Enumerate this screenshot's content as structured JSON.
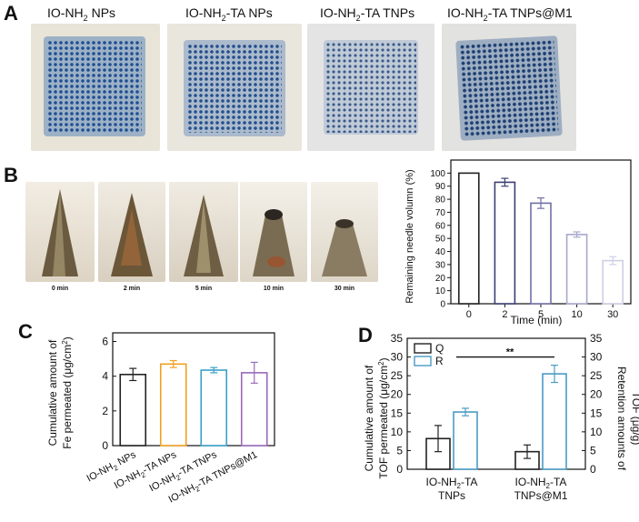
{
  "panels": {
    "a": "A",
    "b": "B",
    "c": "C",
    "d": "D"
  },
  "panel_a": {
    "titles": [
      {
        "prefix": "IO-NH",
        "sub": "2",
        "suffix": " NPs"
      },
      {
        "prefix": "IO-NH",
        "sub": "2",
        "suffix": "-TA NPs"
      },
      {
        "prefix": "IO-NH",
        "sub": "2",
        "suffix": "-TA TNPs"
      },
      {
        "prefix": "IO-NH",
        "sub": "2",
        "suffix": "-TA TNPs@M1"
      }
    ]
  },
  "panel_b": {
    "captions": [
      "0 min",
      "2 min",
      "5 min",
      "10 min",
      "30 min"
    ]
  },
  "colors": {
    "blue_dye": "#2f5f9e",
    "skin": "#e6e0d2",
    "black": "#222222",
    "orange": "#f0a020",
    "cyan": "#3aa0c8",
    "purple": "#9a6ab8",
    "navy": "#3a3f72",
    "lav1": "#4c4f86",
    "lav2": "#6e6fa6",
    "lav3": "#a7a8cc",
    "lav4": "#cfcfe4",
    "r_blue": "#4a9bc4"
  },
  "chart_data": [
    {
      "id": "B",
      "type": "bar",
      "categories": [
        "0",
        "2",
        "5",
        "10",
        "30"
      ],
      "values": [
        100,
        93,
        77,
        53,
        33
      ],
      "errors": [
        0,
        3,
        4,
        2,
        3
      ],
      "xlabel": "Time (min)",
      "ylabel": "Remaining needle volumn (%)",
      "ylim": [
        0,
        110
      ],
      "yticks": [
        "0",
        "10",
        "20",
        "30",
        "40",
        "50",
        "60",
        "70",
        "80",
        "90",
        "100"
      ]
    },
    {
      "id": "C",
      "type": "bar",
      "categories": [
        {
          "prefix": "IO-NH",
          "sub": "2",
          "suffix": " NPs"
        },
        {
          "prefix": "IO-NH",
          "sub": "2",
          "suffix": "-TA NPs"
        },
        {
          "prefix": "IO-NH",
          "sub": "2",
          "suffix": "-TA TNPs"
        },
        {
          "prefix": "IO-NH",
          "sub": "2",
          "suffix": "-TA TNPs@M1"
        }
      ],
      "values": [
        4.1,
        4.7,
        4.35,
        4.2
      ],
      "errors": [
        0.35,
        0.2,
        0.15,
        0.6
      ],
      "ylabel_line1": "Cumulative amount of",
      "ylabel_line2": {
        "prefix": "Fe permeated (μg/cm",
        "sup": "2",
        "suffix": ")"
      },
      "ylim": [
        0,
        6.5
      ],
      "yticks": [
        "0",
        "2",
        "4",
        "6"
      ]
    },
    {
      "id": "D",
      "type": "bar",
      "categories": [
        {
          "line1": "IO-NH2-TA",
          "line2": "TNPs"
        },
        {
          "line1": "IO-NH2-TA",
          "line2": "TNPs@M1"
        }
      ],
      "series": [
        {
          "name": "Q",
          "values": [
            8.2,
            4.7
          ],
          "errors": [
            3.5,
            1.8
          ],
          "axis": "left"
        },
        {
          "name": "R",
          "values": [
            15.3,
            25.5
          ],
          "errors": [
            1.0,
            2.3
          ],
          "axis": "right"
        }
      ],
      "ylabel_left_line1": "Cumulative amount of",
      "ylabel_left_line2": {
        "prefix": "TOF permeated (μg/cm",
        "sup": "2",
        "suffix": ")"
      },
      "ylabel_right_line1": "Retention amounts of",
      "ylabel_right_line2": "TOF (μg/g)",
      "ylim": [
        0,
        35
      ],
      "yticks": [
        "0",
        "5",
        "10",
        "15",
        "20",
        "25",
        "30",
        "35"
      ],
      "significance": "**"
    }
  ]
}
